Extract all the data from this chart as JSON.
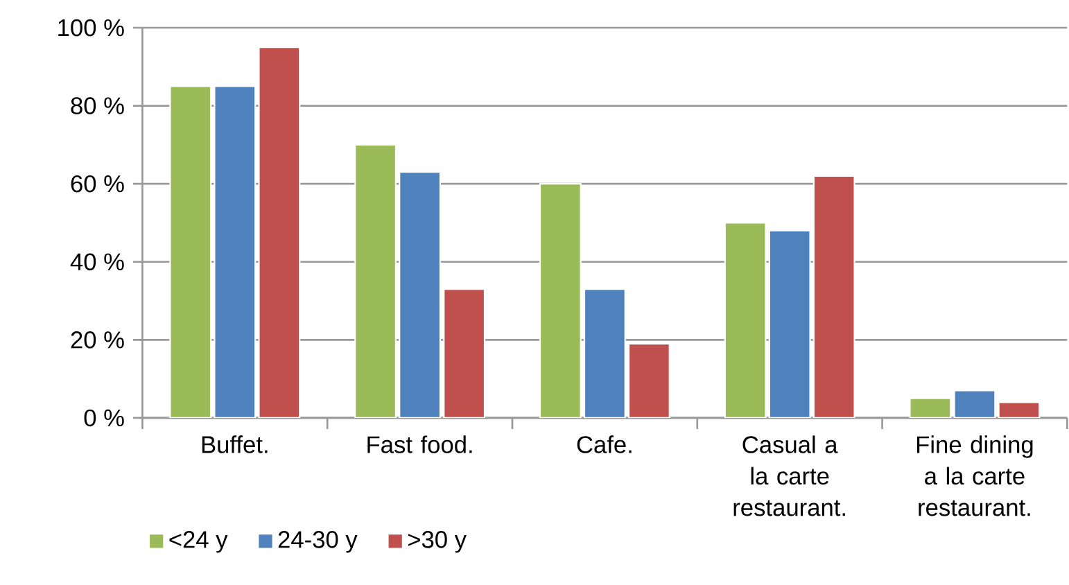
{
  "chart_data": {
    "type": "bar",
    "categories": [
      "Buffet.",
      "Fast food.",
      "Cafe.",
      "Casual a la carte restaurant.",
      "Fine dining a la carte restaurant."
    ],
    "series": [
      {
        "name": "<24 y",
        "color": "#9bbb59",
        "values": [
          85,
          70,
          60,
          50,
          5
        ]
      },
      {
        "name": "24-30 y",
        "color": "#4f81bd",
        "values": [
          85,
          63,
          33,
          48,
          7
        ]
      },
      {
        "name": ">30 y",
        "color": "#c0504d",
        "values": [
          95,
          33,
          19,
          62,
          4
        ]
      }
    ],
    "ylim": [
      0,
      100
    ],
    "yticks": [
      {
        "value": 0,
        "label": "0 %"
      },
      {
        "value": 20,
        "label": "20 %"
      },
      {
        "value": 40,
        "label": "40 %"
      },
      {
        "value": 60,
        "label": "60 %"
      },
      {
        "value": 80,
        "label": "80 %"
      },
      {
        "value": 100,
        "label": "100 %"
      }
    ],
    "grid": "y",
    "legend": "bottom left"
  }
}
